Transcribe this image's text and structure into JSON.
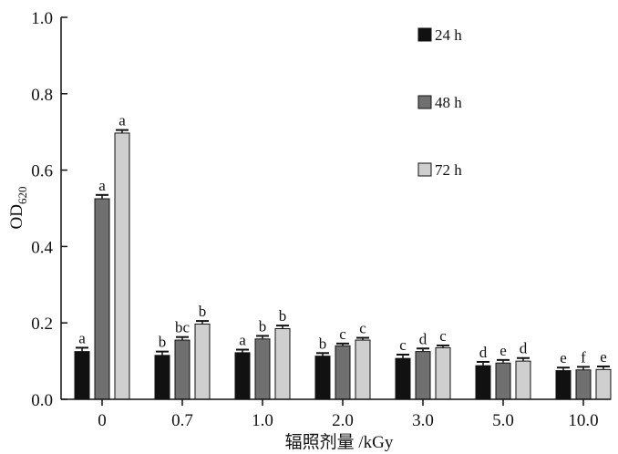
{
  "chart_data": {
    "type": "bar",
    "xlabel": "辐照剂量 /kGy",
    "ylabel": {
      "main": "OD",
      "sub": "620"
    },
    "ylim": [
      0,
      1.0
    ],
    "yticks": [
      "0.0",
      "0.2",
      "0.4",
      "0.6",
      "0.8",
      "1.0"
    ],
    "categories": [
      "0",
      "0.7",
      "1.0",
      "2.0",
      "3.0",
      "5.0",
      "10.0"
    ],
    "legend_position": "top-right",
    "grid": false,
    "error_bars": true,
    "series": [
      {
        "name": "24 h",
        "color": "#111111",
        "values": [
          0.125,
          0.115,
          0.122,
          0.113,
          0.107,
          0.088,
          0.075
        ],
        "errors": [
          0.01,
          0.01,
          0.008,
          0.008,
          0.01,
          0.01,
          0.008
        ],
        "labels": [
          "a",
          "b",
          "a",
          "b",
          "c",
          "d",
          "e"
        ]
      },
      {
        "name": "48 h",
        "color": "#707070",
        "values": [
          0.525,
          0.155,
          0.158,
          0.14,
          0.125,
          0.095,
          0.077
        ],
        "errors": [
          0.01,
          0.008,
          0.008,
          0.006,
          0.008,
          0.008,
          0.008
        ],
        "labels": [
          "a",
          "bc",
          "b",
          "c",
          "d",
          "e",
          "f"
        ]
      },
      {
        "name": "72 h",
        "color": "#cfcfcf",
        "values": [
          0.697,
          0.197,
          0.185,
          0.155,
          0.135,
          0.1,
          0.078
        ],
        "errors": [
          0.008,
          0.008,
          0.008,
          0.006,
          0.006,
          0.008,
          0.008
        ],
        "labels": [
          "a",
          "b",
          "b",
          "c",
          "c",
          "d",
          "e"
        ]
      }
    ]
  }
}
